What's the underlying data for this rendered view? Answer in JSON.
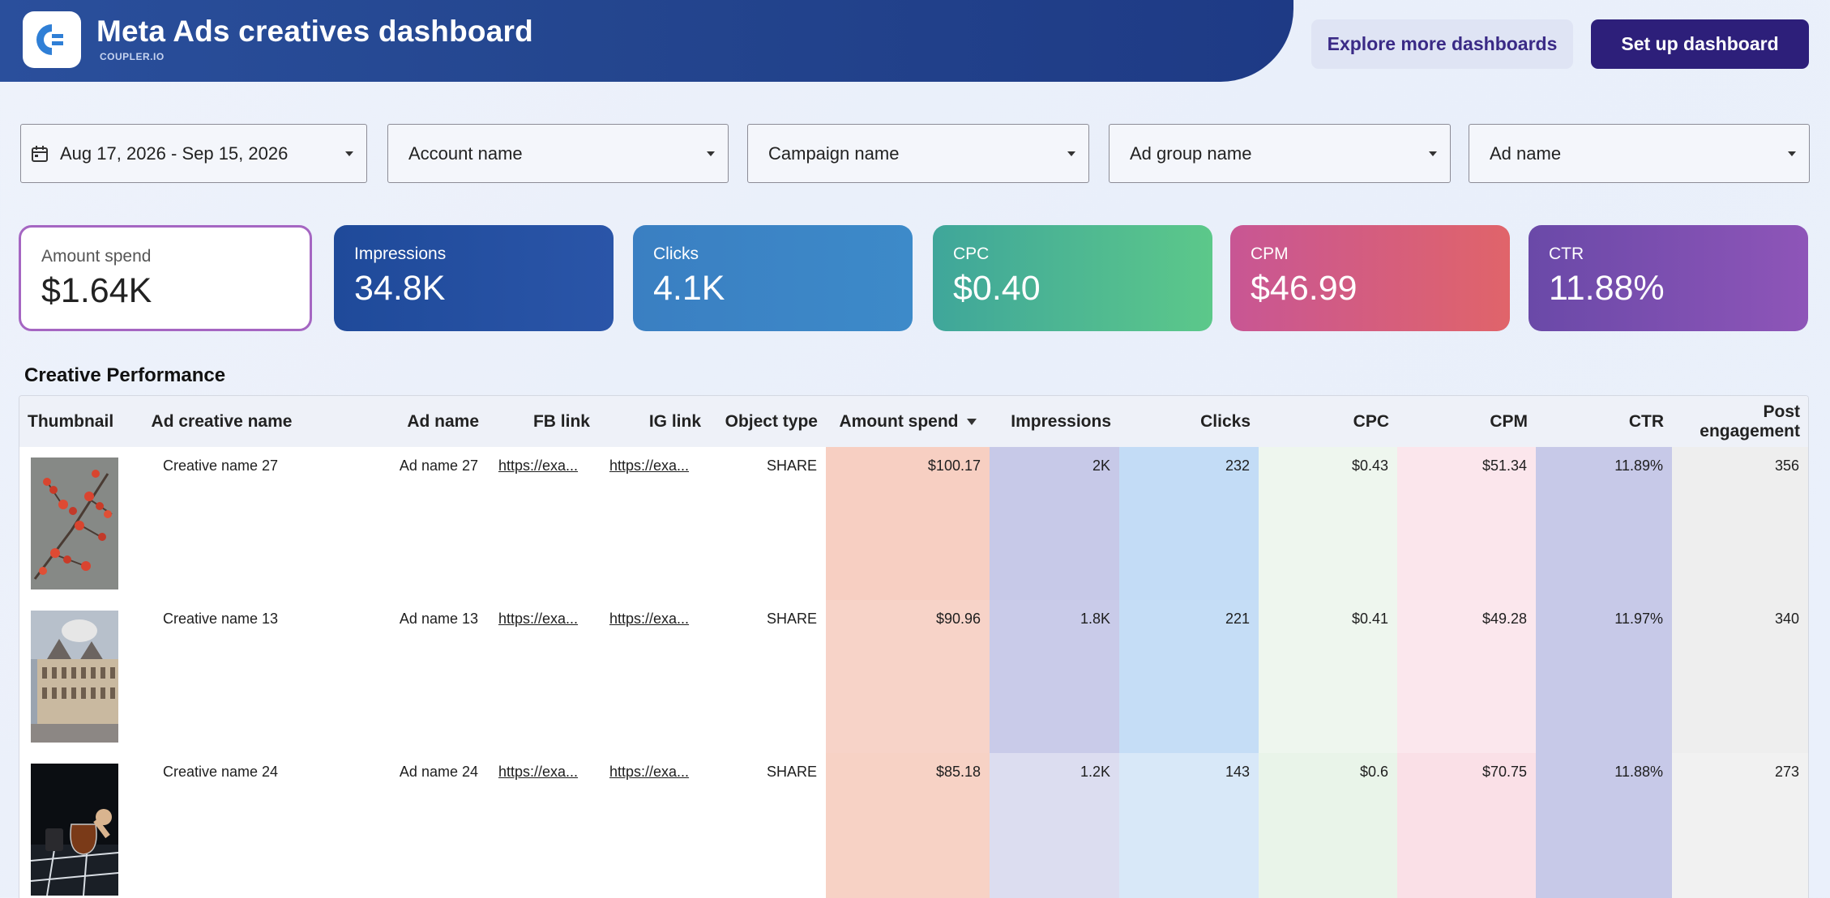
{
  "header": {
    "title": "Meta Ads creatives dashboard",
    "subtitle": "COUPLER.IO",
    "explore_label": "Explore more dashboards",
    "setup_label": "Set up dashboard"
  },
  "filters": {
    "date_range": "Aug 17, 2026 - Sep 15, 2026",
    "account": "Account name",
    "campaign": "Campaign name",
    "ad_group": "Ad group name",
    "ad": "Ad name"
  },
  "kpis": {
    "spend": {
      "label": "Amount spend",
      "value": "$1.64K"
    },
    "impressions": {
      "label": "Impressions",
      "value": "34.8K"
    },
    "clicks": {
      "label": "Clicks",
      "value": "4.1K"
    },
    "cpc": {
      "label": "CPC",
      "value": "$0.40"
    },
    "cpm": {
      "label": "CPM",
      "value": "$46.99"
    },
    "ctr": {
      "label": "CTR",
      "value": "11.88%"
    }
  },
  "section_title": "Creative Performance",
  "table": {
    "headers": {
      "thumbnail": "Thumbnail",
      "creative_name": "Ad creative name",
      "ad_name": "Ad name",
      "fb_link": "FB link",
      "ig_link": "IG link",
      "object_type": "Object type",
      "amount_spend": "Amount spend",
      "impressions": "Impressions",
      "clicks": "Clicks",
      "cpc": "CPC",
      "cpm": "CPM",
      "ctr": "CTR",
      "post_engagement_1": "Post",
      "post_engagement_2": "engagement"
    },
    "rows": [
      {
        "creative": "Creative name 27",
        "ad": "Ad name 27",
        "fb": "https://exa...",
        "ig": "https://exa...",
        "type": "SHARE",
        "spend": "$100.17",
        "impressions": "2K",
        "clicks": "232",
        "cpc": "$0.43",
        "cpm": "$51.34",
        "ctr": "11.89%",
        "engagement": "356"
      },
      {
        "creative": "Creative name 13",
        "ad": "Ad name 13",
        "fb": "https://exa...",
        "ig": "https://exa...",
        "type": "SHARE",
        "spend": "$90.96",
        "impressions": "1.8K",
        "clicks": "221",
        "cpc": "$0.41",
        "cpm": "$49.28",
        "ctr": "11.97%",
        "engagement": "340"
      },
      {
        "creative": "Creative name 24",
        "ad": "Ad name 24",
        "fb": "https://exa...",
        "ig": "https://exa...",
        "type": "SHARE",
        "spend": "$85.18",
        "impressions": "1.2K",
        "clicks": "143",
        "cpc": "$0.6",
        "cpm": "$70.75",
        "ctr": "11.88%",
        "engagement": "273"
      }
    ]
  },
  "colors": {
    "header_blue": "#24468f",
    "setup_button": "#2d1f7a",
    "explore_button": "#dfe4f4"
  }
}
